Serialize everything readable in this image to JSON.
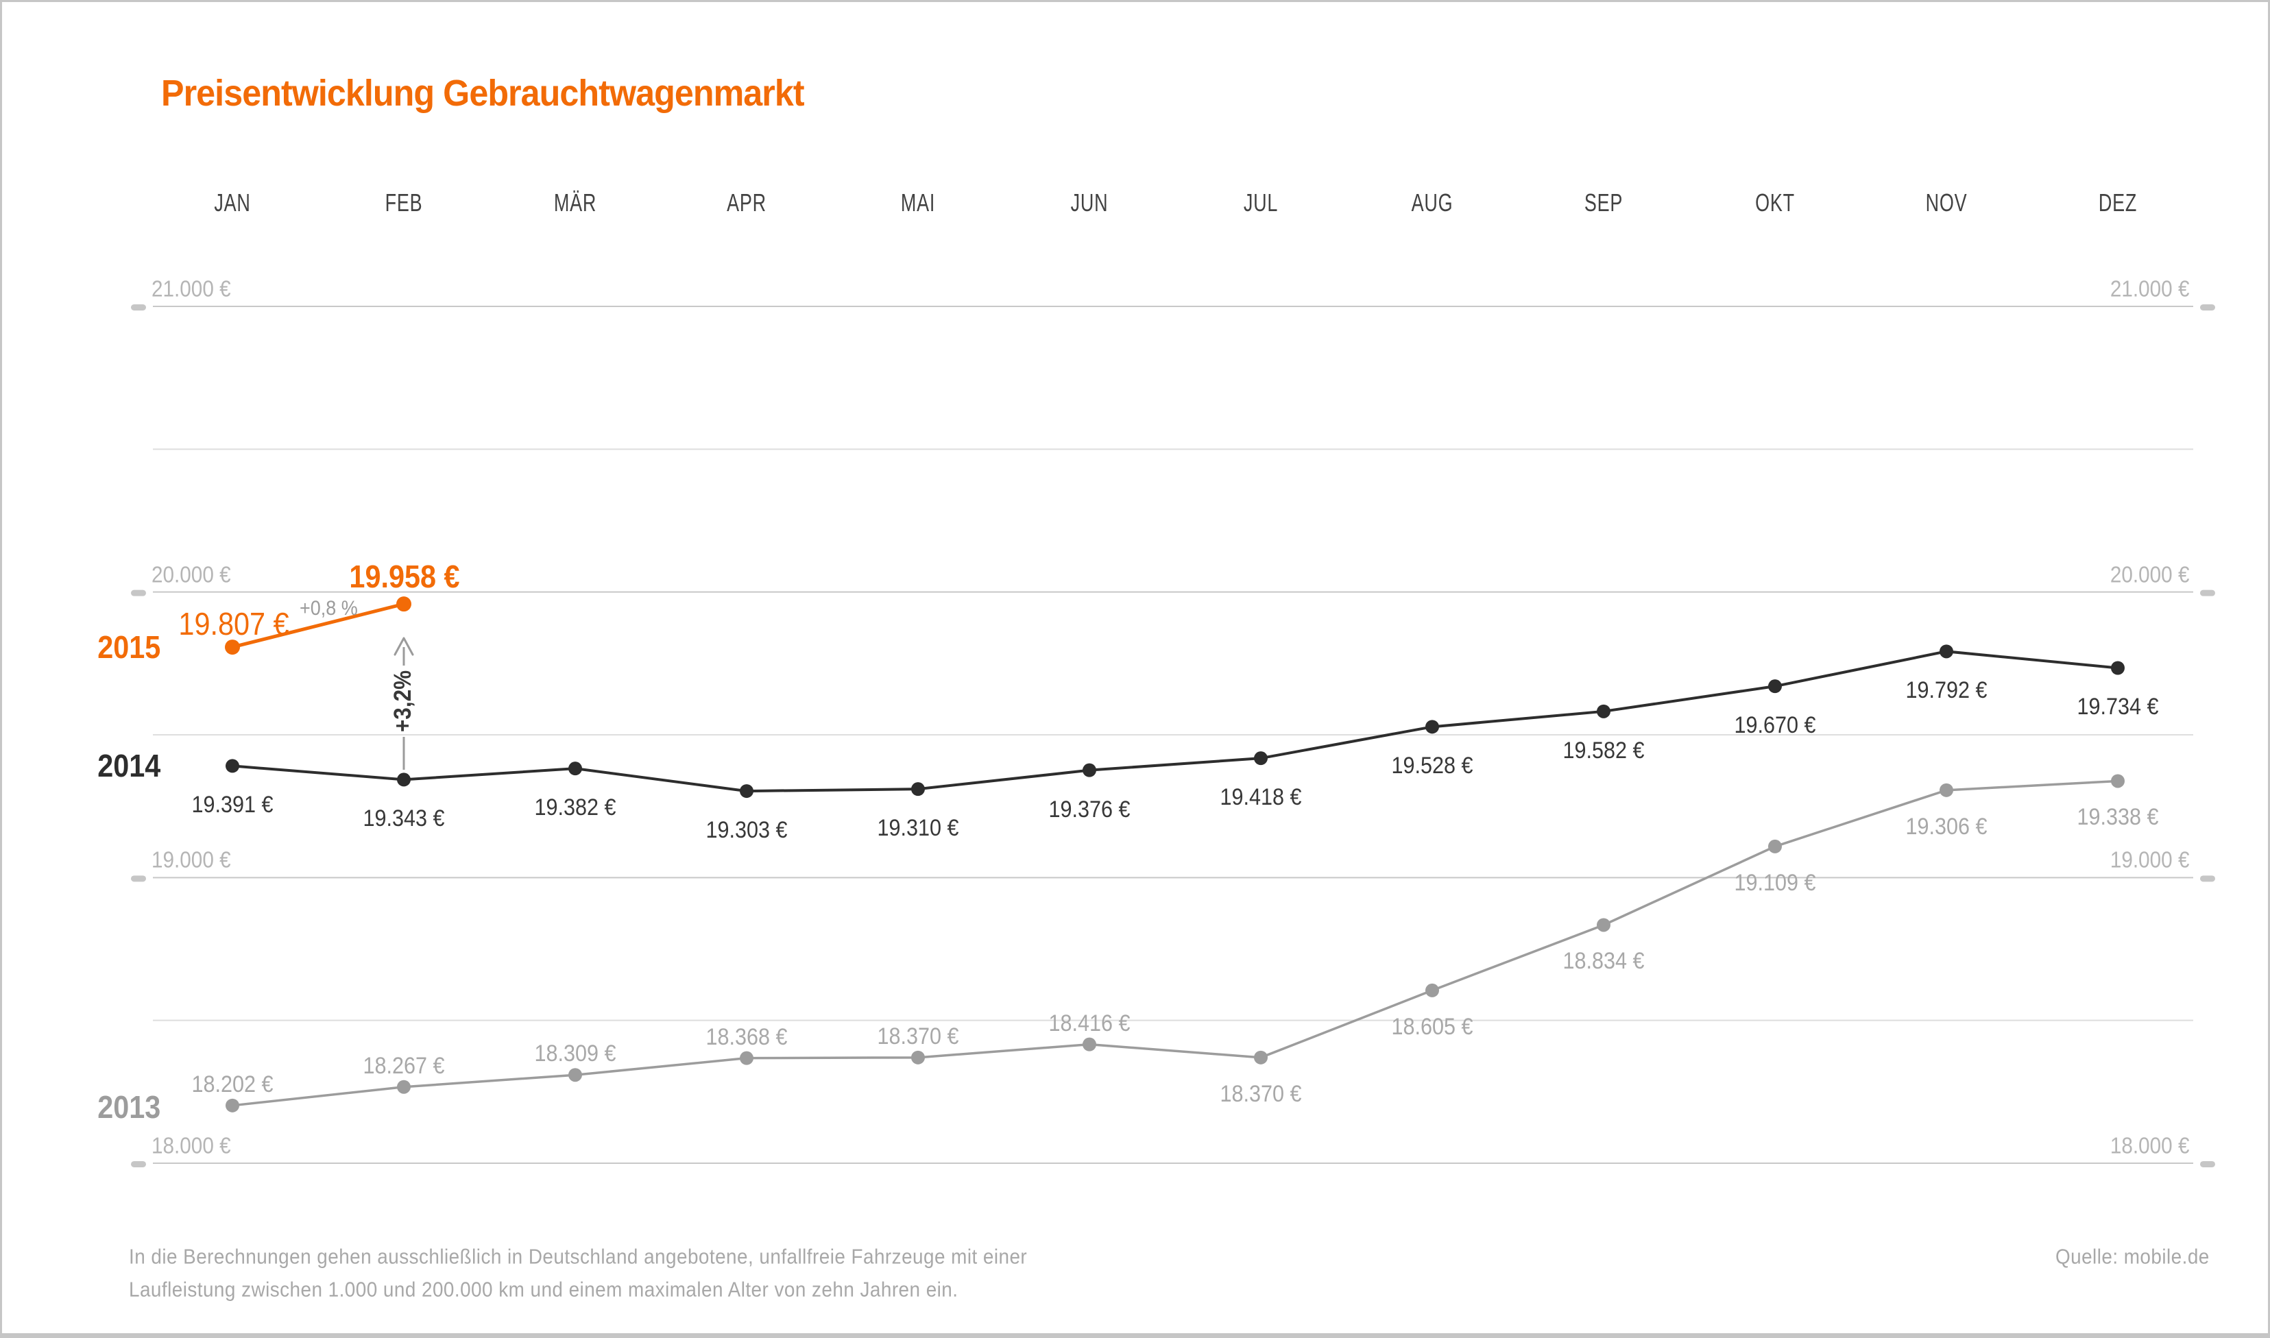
{
  "title": "Preisentwicklung Gebrauchtwagenmarkt",
  "theme": {
    "accent_orange": "#F26B07",
    "dark_series": "#2D2D2D",
    "gray_series": "#9C9C9C",
    "axis_label_gray": "#B5B5B5",
    "grid_major": "#C8C8C8",
    "grid_minor": "#DEDEDE",
    "tick_dash": "#C6C6C6",
    "arrow_gray": "#9B9B9B"
  },
  "months": [
    "JAN",
    "FEB",
    "MÄR",
    "APR",
    "MAI",
    "JUN",
    "JUL",
    "AUG",
    "SEP",
    "OKT",
    "NOV",
    "DEZ"
  ],
  "y_axis": {
    "tick_labels": [
      "21.000 €",
      "20.000 €",
      "19.000 €",
      "18.000 €"
    ],
    "tick_values": [
      21000,
      20000,
      19000,
      18000
    ],
    "minor_gridlines": [
      20500,
      19500,
      18500
    ],
    "unit": "€"
  },
  "chart_data": {
    "type": "line",
    "title": "Preisentwicklung Gebrauchtwagenmarkt",
    "categories": [
      "JAN",
      "FEB",
      "MÄR",
      "APR",
      "MAI",
      "JUN",
      "JUL",
      "AUG",
      "SEP",
      "OKT",
      "NOV",
      "DEZ"
    ],
    "ylim": [
      18000,
      21000
    ],
    "grid": true,
    "legend_position": "left-inline",
    "series": [
      {
        "name": "2013",
        "color": "#9C9C9C",
        "values": [
          18202,
          18267,
          18309,
          18368,
          18370,
          18416,
          18370,
          18605,
          18834,
          19109,
          19306,
          19338
        ]
      },
      {
        "name": "2014",
        "color": "#2D2D2D",
        "values": [
          19391,
          19343,
          19382,
          19303,
          19310,
          19376,
          19418,
          19528,
          19582,
          19670,
          19792,
          19734
        ]
      },
      {
        "name": "2015",
        "color": "#F26B07",
        "values": [
          19807,
          19958,
          null,
          null,
          null,
          null,
          null,
          null,
          null,
          null,
          null,
          null
        ]
      }
    ],
    "annotations": [
      {
        "id": "jan-feb-growth",
        "text": "+0,8 %"
      },
      {
        "id": "feb-yoy-growth",
        "text": "+3,2%"
      }
    ]
  },
  "footer": {
    "line1": "In die Berechnungen gehen ausschließlich in Deutschland angebotene, unfallfreie Fahrzeuge mit einer",
    "line2": "Laufleistung zwischen 1.000 und 200.000 km und einem maximalen Alter von zehn Jahren ein.",
    "source": "Quelle: mobile.de"
  }
}
